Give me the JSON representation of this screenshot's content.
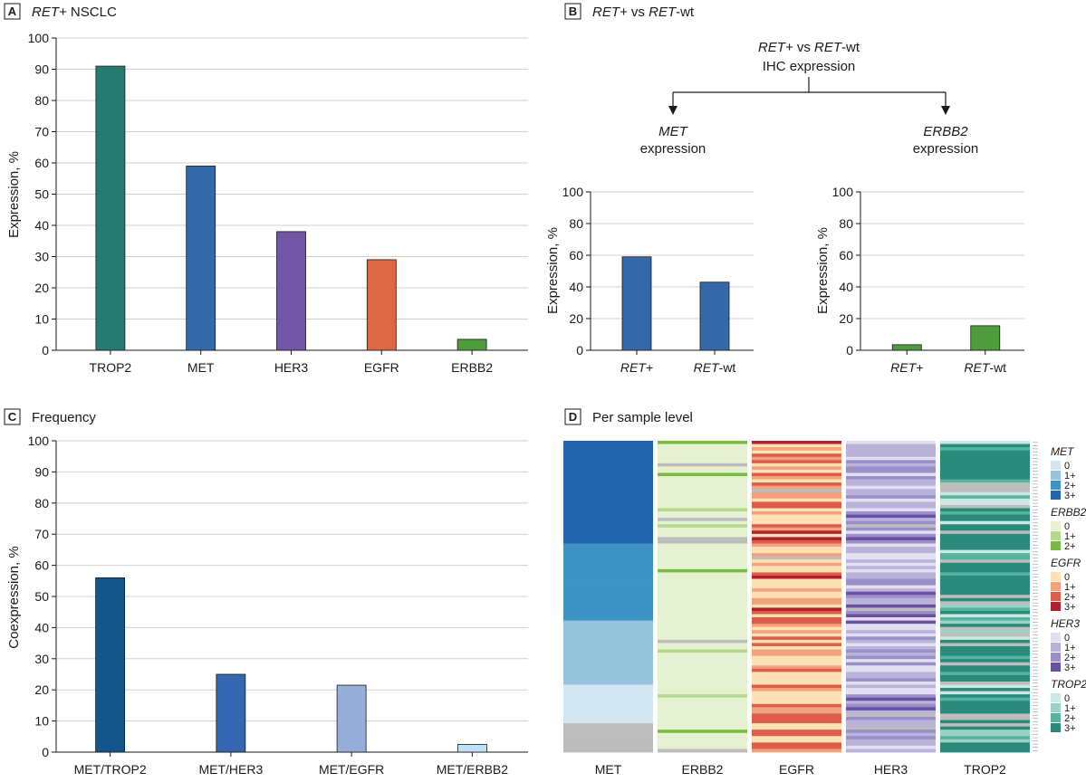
{
  "colors": {
    "trop2_bar": "#277a70",
    "met_bar": "#3568a8",
    "her3_bar": "#7155a6",
    "egfr_bar": "#de6744",
    "erbb2_bar": "#4e9c3c",
    "grid": "#d0d0d0",
    "missing": "#bdbdbd"
  },
  "panel_a": {
    "letter": "A",
    "title_italic": "RET+",
    "title_rest": " NSCLC"
  },
  "panel_b": {
    "letter": "B",
    "title_italic1": "RET+",
    "title_mid": " vs ",
    "title_italic2": "RET",
    "title_rest": "-wt",
    "flow_line1_it1": "RET+",
    "flow_line1_mid": " vs ",
    "flow_line1_it2": "RET",
    "flow_line1_rest": "-wt",
    "flow_line2": "IHC expression",
    "left_gene": "MET",
    "left_label": "expression",
    "right_gene": "ERBB2",
    "right_label": "expression"
  },
  "panel_c": {
    "letter": "C",
    "title": "Frequency"
  },
  "panel_d": {
    "letter": "D",
    "title": "Per sample level",
    "columns": [
      "MET",
      "ERBB2",
      "EGFR",
      "HER3",
      "TROP2"
    ],
    "legend": [
      {
        "gene": "MET",
        "items": [
          {
            "label": "0",
            "color": "#d3e6f3"
          },
          {
            "label": "1+",
            "color": "#96c4dd"
          },
          {
            "label": "2+",
            "color": "#3d93c6"
          },
          {
            "label": "3+",
            "color": "#2065ae"
          }
        ]
      },
      {
        "gene": "ERBB2",
        "items": [
          {
            "label": "0",
            "color": "#e6f1d2"
          },
          {
            "label": "1+",
            "color": "#b4d98a"
          },
          {
            "label": "2+",
            "color": "#78bb43"
          }
        ]
      },
      {
        "gene": "EGFR",
        "items": [
          {
            "label": "0",
            "color": "#fde1b3"
          },
          {
            "label": "1+",
            "color": "#f3a27d"
          },
          {
            "label": "2+",
            "color": "#dd5d4a"
          },
          {
            "label": "3+",
            "color": "#b31f2e"
          }
        ]
      },
      {
        "gene": "HER3",
        "items": [
          {
            "label": "0",
            "color": "#e1dff0"
          },
          {
            "label": "1+",
            "color": "#b9b3da"
          },
          {
            "label": "2+",
            "color": "#9a8fc9"
          },
          {
            "label": "3+",
            "color": "#6a51a3"
          }
        ]
      },
      {
        "gene": "TROP2",
        "items": [
          {
            "label": "0",
            "color": "#cbe9e2"
          },
          {
            "label": "1+",
            "color": "#99d3c6"
          },
          {
            "label": "2+",
            "color": "#55b3a0"
          },
          {
            "label": "3+",
            "color": "#2a8a7c"
          }
        ]
      }
    ]
  },
  "chart_data": [
    {
      "id": "A",
      "type": "bar",
      "title": "RET+ NSCLC",
      "categories": [
        "TROP2",
        "MET",
        "HER3",
        "EGFR",
        "ERBB2"
      ],
      "values": [
        91,
        59,
        38,
        29,
        3.5
      ],
      "colors": [
        "#277a70",
        "#3568a8",
        "#7155a6",
        "#de6744",
        "#4e9c3c"
      ],
      "xlabel": "",
      "ylabel": "Expression, %",
      "ylim": [
        0,
        100
      ],
      "yticks": [
        0,
        10,
        20,
        30,
        40,
        50,
        60,
        70,
        80,
        90,
        100
      ],
      "grid": true
    },
    {
      "id": "B-MET",
      "type": "bar",
      "title": "MET expression",
      "categories": [
        "RET+",
        "RET-wt"
      ],
      "category_parts": [
        [
          "RET+",
          ""
        ],
        [
          "RET",
          "-wt"
        ]
      ],
      "values": [
        59,
        43
      ],
      "colors": [
        "#3568a8",
        "#3568a8"
      ],
      "ylabel": "Expression, %",
      "ylim": [
        0,
        100
      ],
      "yticks": [
        0,
        20,
        40,
        60,
        80,
        100
      ],
      "grid": true
    },
    {
      "id": "B-ERBB2",
      "type": "bar",
      "title": "ERBB2 expression",
      "categories": [
        "RET+",
        "RET-wt"
      ],
      "category_parts": [
        [
          "RET+",
          ""
        ],
        [
          "RET",
          "-wt"
        ]
      ],
      "values": [
        3.5,
        15.5
      ],
      "colors": [
        "#4e9c3c",
        "#4e9c3c"
      ],
      "ylabel": "Expression, %",
      "ylim": [
        0,
        100
      ],
      "yticks": [
        0,
        20,
        40,
        60,
        80,
        100
      ],
      "grid": true
    },
    {
      "id": "C",
      "type": "bar",
      "title": "Frequency",
      "categories": [
        "MET/TROP2",
        "MET/HER3",
        "MET/EGFR",
        "MET/ERBB2"
      ],
      "values": [
        56,
        25,
        21.5,
        2.5
      ],
      "colors": [
        "#13558b",
        "#3568b0",
        "#96aed8",
        "#bfe0f5"
      ],
      "ylabel": "Coexpression, %",
      "ylim": [
        0,
        100
      ],
      "yticks": [
        0,
        10,
        20,
        30,
        40,
        50,
        60,
        70,
        80,
        90,
        100
      ],
      "grid": true
    },
    {
      "id": "D",
      "type": "heatmap",
      "title": "Per sample level",
      "columns": [
        "MET",
        "ERBB2",
        "EGFR",
        "HER3",
        "TROP2"
      ],
      "levels": {
        "MET": [
          "NA",
          "0",
          "1+",
          "2+",
          "3+"
        ],
        "ERBB2": [
          "NA",
          "0",
          "1+",
          "2+"
        ],
        "EGFR": [
          "NA",
          "0",
          "1+",
          "2+",
          "3+"
        ],
        "HER3": [
          "NA",
          "0",
          "1+",
          "2+",
          "3+"
        ],
        "TROP2": [
          "NA",
          "0",
          "1+",
          "2+",
          "3+"
        ]
      },
      "met_groups": [
        {
          "level": "3+",
          "count": 32
        },
        {
          "level": "2+",
          "count": 24
        },
        {
          "level": "1+",
          "count": 20
        },
        {
          "level": "0",
          "count": 12
        },
        {
          "level": "NA",
          "count": 9
        }
      ]
    }
  ]
}
